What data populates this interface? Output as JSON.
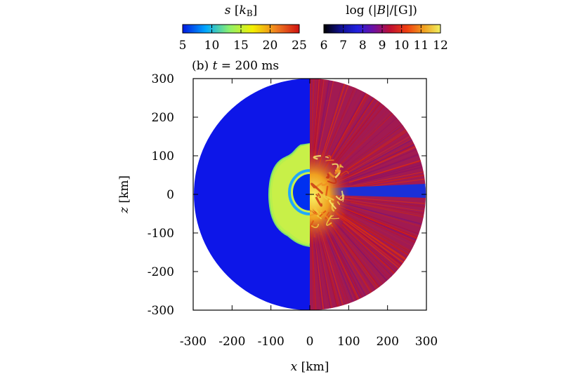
{
  "chart_data": {
    "type": "heatmap",
    "panel_label": "(b) t = 200 ms",
    "xlabel": "x [km]",
    "ylabel": "z [km]",
    "xlim": [
      -300,
      300
    ],
    "ylim": [
      -300,
      300
    ],
    "xticks": [
      -300,
      -200,
      -100,
      0,
      100,
      200,
      300
    ],
    "yticks": [
      -300,
      -200,
      -100,
      0,
      100,
      200,
      300
    ],
    "colorbars": [
      {
        "title": "s [kB]",
        "range": [
          5,
          25
        ],
        "ticks": [
          5,
          10,
          15,
          20,
          25
        ],
        "colormap": [
          "#0018e0",
          "#00a8ff",
          "#8cf06c",
          "#f4f000",
          "#f08020",
          "#d01010"
        ]
      },
      {
        "title": "log (|B|/[G])",
        "range": [
          6,
          12
        ],
        "ticks": [
          6,
          7,
          8,
          9,
          10,
          11,
          12
        ],
        "colormap": [
          "#000000",
          "#101090",
          "#2020e0",
          "#7010a0",
          "#c01030",
          "#f04010",
          "#f0a020",
          "#f0f060"
        ]
      }
    ],
    "left_half": {
      "quantity": "s [kB]",
      "background_value": 5,
      "shock_radius": 300,
      "inner_region_value": 13,
      "inner_core_value": 5,
      "inner_region_extent": {
        "z_top": 130,
        "z_bottom": -140,
        "x_min": -105
      }
    },
    "right_half": {
      "quantity": "log (|B|/[G])",
      "background_value": 9.5,
      "central_value": 11.5,
      "equatorial_low_value": 8
    },
    "colors": {
      "entropy_background": "#0d16e8",
      "entropy_shell": "#b8f04c",
      "magnetic_background": "#a11a52"
    }
  }
}
